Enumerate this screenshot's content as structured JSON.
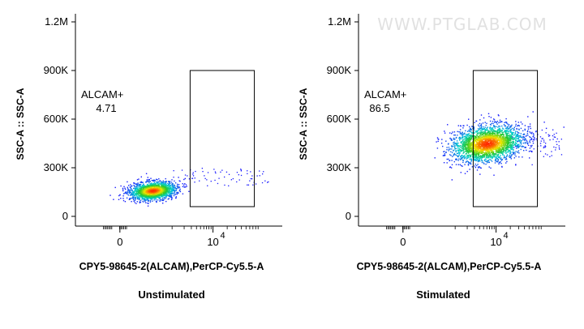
{
  "watermark": "WWW.PTGLAB.COM",
  "chart_data": [
    {
      "type": "scatter",
      "title": "",
      "caption": "Unstimulated",
      "xlabel": "CPY5-98645-2(ALCAM),PerCP-Cy5.5-A",
      "ylabel": "SSC-A :: SSC-A",
      "scale": "biexponential",
      "y_ticks": [
        "0",
        "300K",
        "600K",
        "900K",
        "1.2M"
      ],
      "y_tick_values": [
        0,
        300000,
        600000,
        900000,
        1200000
      ],
      "x_ticks": [
        {
          "base": "0",
          "exp": ""
        },
        {
          "base": "10",
          "exp": "4"
        }
      ],
      "x_tick_values": [
        0,
        10000
      ],
      "ylim": [
        -60000,
        1250000
      ],
      "gate": {
        "name": "ALCAM+",
        "value": "4.71",
        "x_min": 2800,
        "x_max": 75000,
        "y_min": 60000,
        "y_max": 900000
      },
      "cluster": {
        "x_center": 300,
        "y_center": 160000,
        "spread": "narrow"
      }
    },
    {
      "type": "scatter",
      "title": "",
      "caption": "Stimulated",
      "xlabel": "CPY5-98645-2(ALCAM),PerCP-Cy5.5-A",
      "ylabel": "SSC-A :: SSC-A",
      "scale": "biexponential",
      "y_ticks": [
        "0",
        "300K",
        "600K",
        "900K",
        "1.2M"
      ],
      "y_tick_values": [
        0,
        300000,
        600000,
        900000,
        1200000
      ],
      "x_ticks": [
        {
          "base": "0",
          "exp": ""
        },
        {
          "base": "10",
          "exp": "4"
        }
      ],
      "x_tick_values": [
        0,
        10000
      ],
      "ylim": [
        -60000,
        1250000
      ],
      "gate": {
        "name": "ALCAM+",
        "value": "86.5",
        "x_min": 2800,
        "x_max": 75000,
        "y_min": 60000,
        "y_max": 900000
      },
      "cluster": {
        "x_center": 6000,
        "y_center": 450000,
        "spread": "wide"
      }
    }
  ],
  "colors": {
    "axis": "#000000",
    "gate": "#000000",
    "density_low": "#1a1aff",
    "density_mid": "#00d0d0",
    "density_high": "#ff2a00"
  }
}
